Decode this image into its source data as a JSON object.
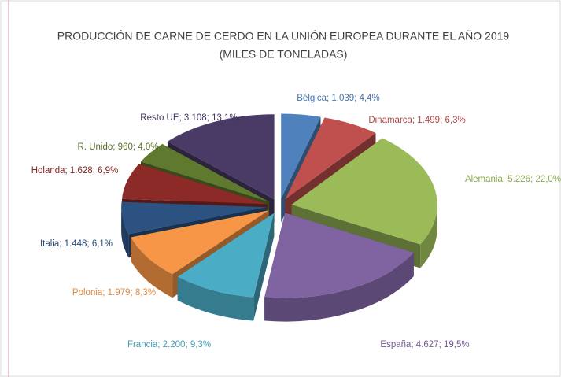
{
  "chart_data": {
    "type": "pie",
    "title": "PRODUCCIÓN DE CARNE DE CERDO EN LA UNIÓN EUROPEA DURANTE EL AÑO 2019",
    "subtitle": "(MILES DE TONELADAS)",
    "categories": [
      "Bélgica",
      "Dinamarca",
      "Alemania",
      "España",
      "Francia",
      "Polonia",
      "Italia",
      "Holanda",
      "R. Unido",
      "Resto UE"
    ],
    "values": [
      1039,
      1499,
      5226,
      4627,
      2200,
      1979,
      1448,
      1628,
      960,
      3108
    ],
    "value_labels": [
      "Bélgica; 1.039; 4,4%",
      "Dinamarca; 1.499; 6,3%",
      "Alemania; 5.226; 22,0%",
      "España; 4.627; 19,5%",
      "Francia; 2.200; 9,3%",
      "Polonia; 1.979; 8,3%",
      "Italia; 1.448; 6,1%",
      "Holanda; 1.628; 6,9%",
      "R. Unido; 960; 4,0%",
      "Resto UE; 3.108; 13,1%"
    ],
    "colors": [
      "#4f81bd",
      "#c0504d",
      "#9bbb59",
      "#8064a2",
      "#4bacc6",
      "#f79646",
      "#2c5282",
      "#8b2a27",
      "#5f7a2e",
      "#4a3a66"
    ]
  }
}
